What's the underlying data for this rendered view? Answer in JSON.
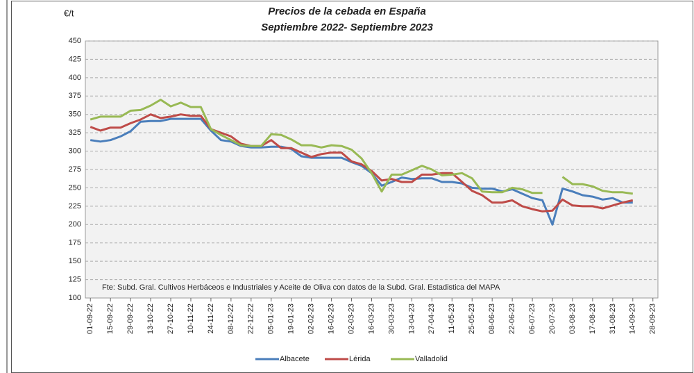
{
  "chart_data": {
    "type": "line",
    "title": "Precios de la cebada en España",
    "subtitle": "Septiembre 2022- Septiembre 2023",
    "y_unit": "€/t",
    "annotation": "Fte: Subd. Gral. Cultivos Herbáceos e Industriales y Aceite de Oliva con datos de la Subd. Gral. Estadistica del MAPA",
    "categories": [
      "01-09-22",
      null,
      "15-09-22",
      null,
      "29-09-22",
      null,
      "13-10-22",
      null,
      "27-10-22",
      null,
      "10-11-22",
      null,
      "24-11-22",
      null,
      "08-12-22",
      null,
      "22-12-22",
      null,
      "05-01-23",
      null,
      "19-01-23",
      null,
      "02-02-23",
      null,
      "16-02-23",
      null,
      "02-03-23",
      null,
      "16-03-23",
      null,
      "30-03-23",
      null,
      "13-04-23",
      null,
      "27-04-23",
      null,
      "11-05-23",
      null,
      "25-05-23",
      null,
      "08-06-23",
      null,
      "22-06-23",
      null,
      "06-07-23",
      null,
      "20-07-23",
      null,
      "03-08-23",
      null,
      "17-08-23",
      null,
      "31-08-23",
      null,
      "14-09-23",
      null,
      "28-09-23"
    ],
    "series": [
      {
        "name": "Albacete",
        "color": "#4a7ebb",
        "values": [
          315,
          313,
          315,
          320,
          327,
          340,
          341,
          341,
          344,
          344,
          344,
          344,
          328,
          315,
          313,
          307,
          305,
          305,
          306,
          306,
          303,
          293,
          291,
          291,
          291,
          291,
          285,
          280,
          270,
          253,
          258,
          264,
          262,
          263,
          263,
          258,
          258,
          256,
          250,
          249,
          249,
          245,
          248,
          242,
          236,
          233,
          200,
          249,
          245,
          240,
          238,
          234,
          236,
          230,
          230,
          null,
          null
        ]
      },
      {
        "name": "Lérida",
        "color": "#be4b48",
        "values": [
          333,
          328,
          332,
          332,
          338,
          343,
          350,
          345,
          347,
          350,
          348,
          348,
          330,
          325,
          320,
          310,
          307,
          307,
          315,
          304,
          304,
          298,
          292,
          296,
          298,
          298,
          286,
          282,
          273,
          260,
          262,
          258,
          258,
          268,
          268,
          270,
          270,
          258,
          246,
          240,
          230,
          230,
          233,
          225,
          221,
          218,
          219,
          234,
          226,
          225,
          225,
          222,
          226,
          230,
          233,
          null,
          null
        ]
      },
      {
        "name": "Valladolid",
        "color": "#98b954",
        "values": [
          343,
          347,
          347,
          347,
          355,
          356,
          362,
          370,
          361,
          366,
          360,
          360,
          330,
          322,
          315,
          308,
          307,
          307,
          323,
          322,
          316,
          308,
          308,
          305,
          308,
          307,
          302,
          290,
          270,
          245,
          268,
          268,
          274,
          280,
          275,
          267,
          268,
          270,
          263,
          245,
          244,
          244,
          250,
          248,
          243,
          243,
          null,
          265,
          255,
          255,
          252,
          246,
          244,
          244,
          242,
          null,
          null
        ]
      }
    ],
    "ylim": [
      100,
      450
    ],
    "yticks": [
      100,
      125,
      150,
      175,
      200,
      225,
      250,
      275,
      300,
      325,
      350,
      375,
      400,
      425,
      450
    ],
    "grid": true,
    "legend": "bottom"
  }
}
